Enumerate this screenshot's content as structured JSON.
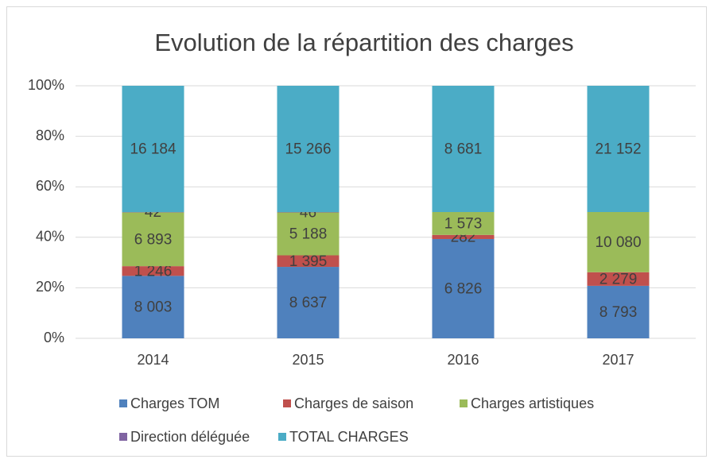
{
  "chart_data": {
    "type": "stacked_bar_100",
    "title": "Evolution de la répartition des charges",
    "categories": [
      "2014",
      "2015",
      "2016",
      "2017"
    ],
    "series": [
      {
        "name": "Charges TOM",
        "color": "#4f81bd",
        "values": [
          8003,
          8637,
          6826,
          8793
        ],
        "value_labels": [
          "8 003",
          "8 637",
          "6 826",
          "8 793"
        ]
      },
      {
        "name": "Charges de saison",
        "color": "#c0504d",
        "values": [
          1246,
          1395,
          282,
          2279
        ],
        "value_labels": [
          "1 246",
          "1 395",
          "282",
          "2 279"
        ]
      },
      {
        "name": "Charges artistiques",
        "color": "#9bbb59",
        "values": [
          6893,
          5188,
          1573,
          10080
        ],
        "value_labels": [
          "6 893",
          "5 188",
          "1 573",
          "10 080"
        ]
      },
      {
        "name": "Direction déléguée",
        "color": "#8064a2",
        "values": [
          42,
          46,
          null,
          null
        ],
        "value_labels": [
          "42",
          "46",
          null,
          null
        ]
      },
      {
        "name": "TOTAL CHARGES",
        "color": "#4bacc6",
        "values": [
          16184,
          15266,
          8681,
          21152
        ],
        "value_labels": [
          "16 184",
          "15 266",
          "8 681",
          "21 152"
        ]
      }
    ],
    "ylim": [
      0,
      100
    ],
    "yticks": [
      {
        "value": 0,
        "label": "0%"
      },
      {
        "value": 20,
        "label": "20%"
      },
      {
        "value": 40,
        "label": "40%"
      },
      {
        "value": 60,
        "label": "60%"
      },
      {
        "value": 80,
        "label": "80%"
      },
      {
        "value": 100,
        "label": "100%"
      }
    ],
    "grid": true,
    "legend": "bottom"
  }
}
